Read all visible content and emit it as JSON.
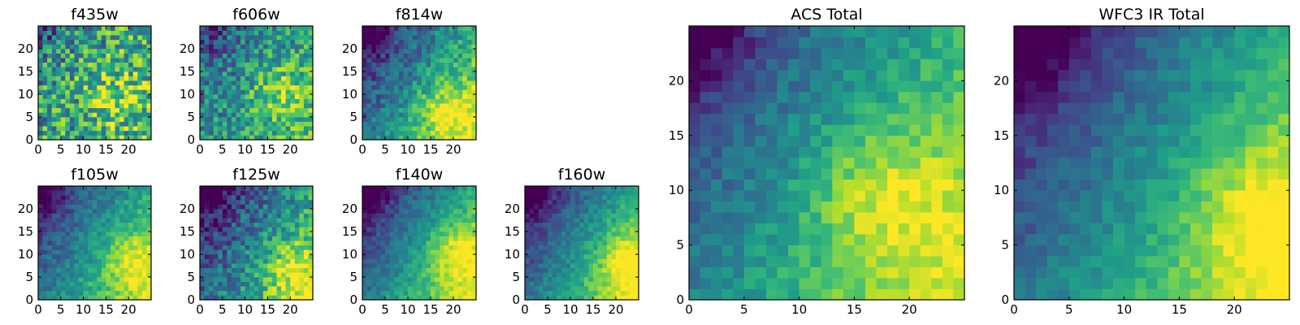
{
  "figure": {
    "background": "#ffffff",
    "colormap": "viridis",
    "colormap_stops": [
      "#440154",
      "#482878",
      "#3e4989",
      "#31688e",
      "#26828e",
      "#1f9e89",
      "#35b779",
      "#6ece58",
      "#b5de2b",
      "#fde725"
    ]
  },
  "chart_data": [
    {
      "type": "heatmap",
      "title": "f435w",
      "grid_size": [
        25,
        25
      ],
      "xlim": [
        0,
        25
      ],
      "ylim": [
        0,
        25
      ],
      "xticks": [
        0,
        5,
        10,
        15,
        20
      ],
      "yticks": [
        0,
        5,
        10,
        15,
        20
      ],
      "value_range": [
        0,
        1
      ],
      "grid": false,
      "colorbar": false,
      "pattern": "noisy-hotspot",
      "hotspot": [
        16,
        9
      ],
      "noise": 0.34,
      "base": 0.58,
      "gradient": 0.1
    },
    {
      "type": "heatmap",
      "title": "f606w",
      "grid_size": [
        25,
        25
      ],
      "xlim": [
        0,
        25
      ],
      "ylim": [
        0,
        25
      ],
      "xticks": [
        0,
        5,
        10,
        15,
        20
      ],
      "yticks": [
        0,
        5,
        10,
        15,
        20
      ],
      "value_range": [
        0,
        1
      ],
      "grid": false,
      "colorbar": false,
      "pattern": "noisy-hotspot",
      "hotspot": [
        17,
        10
      ],
      "noise": 0.24,
      "base": 0.52,
      "gradient": 0.22
    },
    {
      "type": "heatmap",
      "title": "f814w",
      "grid_size": [
        25,
        25
      ],
      "xlim": [
        0,
        25
      ],
      "ylim": [
        0,
        25
      ],
      "xticks": [
        0,
        5,
        10,
        15,
        20
      ],
      "yticks": [
        0,
        5,
        10,
        15,
        20
      ],
      "value_range": [
        0,
        1
      ],
      "grid": false,
      "colorbar": false,
      "pattern": "gradient-lower-right",
      "hotspot": [
        18,
        6
      ],
      "noise": 0.16,
      "base": 0.5,
      "gradient": 0.55
    },
    {
      "type": "heatmap",
      "title": "f105w",
      "grid_size": [
        25,
        25
      ],
      "xlim": [
        0,
        25
      ],
      "ylim": [
        0,
        25
      ],
      "xticks": [
        0,
        5,
        10,
        15,
        20
      ],
      "yticks": [
        0,
        5,
        10,
        15,
        20
      ],
      "value_range": [
        0,
        1
      ],
      "grid": false,
      "colorbar": false,
      "pattern": "gradient-lower-right",
      "hotspot": [
        20,
        8
      ],
      "noise": 0.12,
      "base": 0.5,
      "gradient": 0.5
    },
    {
      "type": "heatmap",
      "title": "f125w",
      "grid_size": [
        25,
        25
      ],
      "xlim": [
        0,
        25
      ],
      "ylim": [
        0,
        25
      ],
      "xticks": [
        0,
        5,
        10,
        15,
        20
      ],
      "yticks": [
        0,
        5,
        10,
        15,
        20
      ],
      "value_range": [
        0,
        1
      ],
      "grid": false,
      "colorbar": false,
      "pattern": "gradient-lower-right",
      "hotspot": [
        20,
        6
      ],
      "noise": 0.2,
      "base": 0.45,
      "gradient": 0.55
    },
    {
      "type": "heatmap",
      "title": "f140w",
      "grid_size": [
        25,
        25
      ],
      "xlim": [
        0,
        25
      ],
      "ylim": [
        0,
        25
      ],
      "xticks": [
        0,
        5,
        10,
        15,
        20
      ],
      "yticks": [
        0,
        5,
        10,
        15,
        20
      ],
      "value_range": [
        0,
        1
      ],
      "grid": false,
      "colorbar": false,
      "pattern": "gradient-lower-right",
      "hotspot": [
        20,
        10
      ],
      "noise": 0.1,
      "base": 0.5,
      "gradient": 0.6
    },
    {
      "type": "heatmap",
      "title": "f160w",
      "grid_size": [
        25,
        25
      ],
      "xlim": [
        0,
        25
      ],
      "ylim": [
        0,
        25
      ],
      "xticks": [
        0,
        5,
        10,
        15,
        20
      ],
      "yticks": [
        0,
        5,
        10,
        15,
        20
      ],
      "value_range": [
        0,
        1
      ],
      "grid": false,
      "colorbar": false,
      "pattern": "gradient-lower-right",
      "hotspot": [
        22,
        8
      ],
      "noise": 0.1,
      "base": 0.5,
      "gradient": 0.6
    },
    {
      "type": "heatmap",
      "title": "ACS Total",
      "grid_size": [
        25,
        25
      ],
      "xlim": [
        0,
        25
      ],
      "ylim": [
        0,
        25
      ],
      "xticks": [
        0,
        5,
        10,
        15,
        20
      ],
      "yticks": [
        0,
        5,
        10,
        15,
        20
      ],
      "value_range": [
        0,
        1
      ],
      "grid": false,
      "colorbar": false,
      "pattern": "gradient-lower-right",
      "hotspot": [
        17,
        9
      ],
      "noise": 0.1,
      "base": 0.55,
      "gradient": 0.5
    },
    {
      "type": "heatmap",
      "title": "WFC3 IR Total",
      "grid_size": [
        25,
        25
      ],
      "xlim": [
        0,
        25
      ],
      "ylim": [
        0,
        25
      ],
      "xticks": [
        0,
        5,
        10,
        15,
        20
      ],
      "yticks": [
        0,
        5,
        10,
        15,
        20
      ],
      "value_range": [
        0,
        1
      ],
      "grid": false,
      "colorbar": false,
      "pattern": "gradient-lower-right",
      "hotspot": [
        22,
        7
      ],
      "noise": 0.08,
      "base": 0.5,
      "gradient": 0.6
    }
  ]
}
